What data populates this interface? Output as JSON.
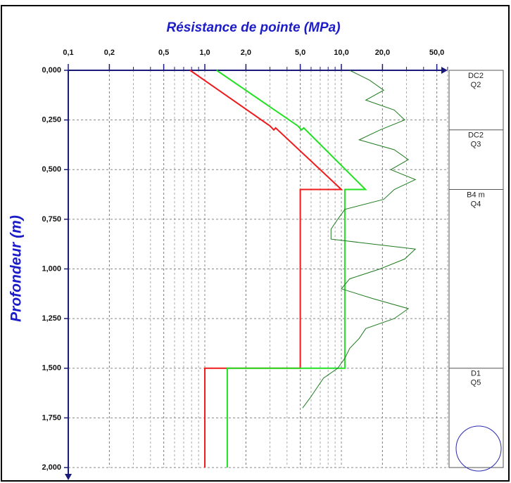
{
  "chart_data": {
    "type": "line",
    "title": "Résistance de pointe (MPa)",
    "y_label": "Profondeur (m)",
    "xlog": true,
    "grid": true,
    "xlim": [
      0.1,
      60
    ],
    "ylim": [
      0,
      2
    ],
    "xticks": [
      {
        "value": 0.1,
        "label": "0,1"
      },
      {
        "value": 0.2,
        "label": "0,2"
      },
      {
        "value": 0.5,
        "label": "0,5"
      },
      {
        "value": 1,
        "label": "1,0"
      },
      {
        "value": 2,
        "label": "2,0"
      },
      {
        "value": 5,
        "label": "5,0"
      },
      {
        "value": 10,
        "label": "10,0"
      },
      {
        "value": 20,
        "label": "20,0"
      },
      {
        "value": 50,
        "label": "50,0"
      }
    ],
    "yticks": [
      {
        "value": 0,
        "label": "0,000"
      },
      {
        "value": 0.25,
        "label": "0,250"
      },
      {
        "value": 0.5,
        "label": "0,500"
      },
      {
        "value": 0.75,
        "label": "0,750"
      },
      {
        "value": 1,
        "label": "1,000"
      },
      {
        "value": 1.25,
        "label": "1,250"
      },
      {
        "value": 1.5,
        "label": "1,500"
      },
      {
        "value": 1.75,
        "label": "1,750"
      },
      {
        "value": 2,
        "label": "2,000"
      }
    ],
    "series": [
      {
        "color": "#ee1c1c",
        "width": 2,
        "x": [
          0.78,
          3,
          3.2,
          3.3,
          10,
          5,
          5,
          1,
          1
        ],
        "y": [
          0,
          0.28,
          0.3,
          0.29,
          0.6,
          0.6,
          1.5,
          1.5,
          2
        ]
      },
      {
        "color": "#22e022",
        "width": 2,
        "x": [
          1.22,
          4.8,
          5.1,
          5.3,
          15,
          10.6,
          10.6,
          1.46,
          1.46
        ],
        "y": [
          0,
          0.28,
          0.3,
          0.29,
          0.6,
          0.6,
          1.5,
          1.5,
          2
        ]
      },
      {
        "color": "#1e7a1e",
        "width": 1,
        "x": [
          11.5,
          16.1,
          20.4,
          15.1,
          24.4,
          29.1,
          19.2,
          13.5,
          24.4,
          30.9,
          23.0,
          34.8,
          24.4,
          20.4,
          10.6,
          9.4,
          8.4,
          8.4,
          34.8,
          29.1,
          19.2,
          11.5,
          10.0,
          17.1,
          30.9,
          24.4,
          15.1,
          13.5,
          11.5,
          10.6,
          9.4,
          7.4,
          6.6,
          5.9,
          5.2
        ],
        "y": [
          0,
          0.05,
          0.1,
          0.15,
          0.2,
          0.25,
          0.3,
          0.35,
          0.4,
          0.45,
          0.5,
          0.55,
          0.6,
          0.65,
          0.7,
          0.75,
          0.8,
          0.85,
          0.9,
          0.95,
          1.0,
          1.05,
          1.1,
          1.15,
          1.2,
          1.25,
          1.3,
          1.35,
          1.4,
          1.45,
          1.5,
          1.55,
          1.6,
          1.65,
          1.7
        ]
      }
    ],
    "layers": [
      {
        "name": "DC2",
        "code": "Q2",
        "top": 0
      },
      {
        "name": "DC2",
        "code": "Q3",
        "top": 0.3
      },
      {
        "name": "B4 m",
        "code": "Q4",
        "top": 0.6
      },
      {
        "name": "D1",
        "code": "Q5",
        "top": 1.5
      }
    ]
  }
}
